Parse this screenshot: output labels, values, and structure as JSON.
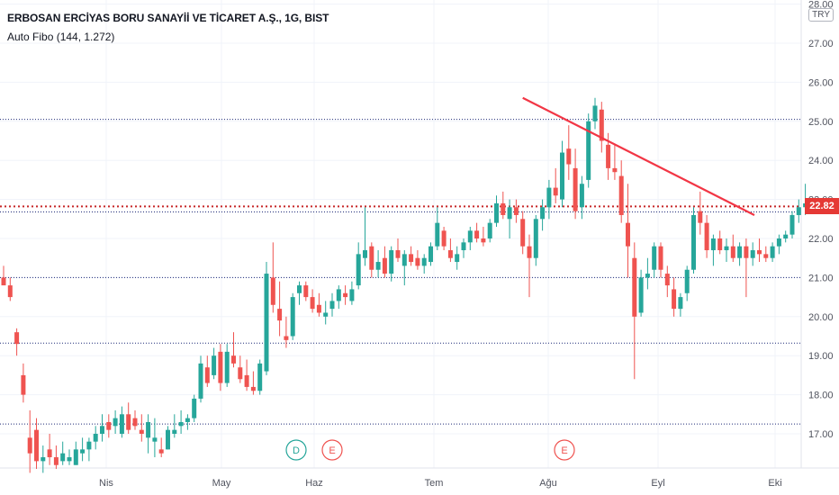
{
  "header": {
    "title": "ERBOSAN ERCİYAS BORU SANAYİİ VE TİCARET A.Ş., 1G, BIST",
    "indicator": "Auto Fibo (144, 1.272)",
    "currency": "TRY"
  },
  "price_tag": "22.82",
  "events": [
    {
      "label": "D",
      "date": "Haz (early)",
      "color": "#26a69a"
    },
    {
      "label": "E",
      "date": "Haz (early)",
      "color": "#ef5350"
    },
    {
      "label": "E",
      "date": "Ağu (early)",
      "color": "#ef5350"
    }
  ],
  "colors": {
    "up": "#26a69a",
    "down": "#ef5350",
    "trendline": "#f23645",
    "fib_line": "#1e2a78",
    "last_price_line": "#c62828",
    "grid": "#f0f3fa",
    "axis_text": "#50535e"
  },
  "chart_data": {
    "type": "candlestick",
    "title": "ERBOSAN ERCİYAS BORU SANAYİİ VE TİCARET A.Ş., 1G, BIST",
    "y_axis": {
      "ticks": [
        "17.00",
        "18.00",
        "19.00",
        "20.00",
        "21.00",
        "22.00",
        "23.00",
        "24.00",
        "25.00",
        "26.00",
        "27.00",
        "28.00"
      ],
      "ylim": [
        16.2,
        28.1
      ],
      "position": "right"
    },
    "x_axis": {
      "ticks": [
        "Nis",
        "May",
        "Haz",
        "Tem",
        "Ağu",
        "Eyl",
        "Eki"
      ]
    },
    "fib_levels": [
      25.05,
      22.68,
      21.0,
      19.32,
      17.25
    ],
    "last_price": 22.82,
    "trendline": {
      "from": [
        79,
        25.6
      ],
      "to": [
        110,
        22.6
      ]
    },
    "candles": [
      [
        21.0,
        21.3,
        20.9,
        20.8
      ],
      [
        20.8,
        21.0,
        20.4,
        20.5
      ],
      [
        19.6,
        19.7,
        19.0,
        19.3
      ],
      [
        18.5,
        18.8,
        17.8,
        18.0
      ],
      [
        16.9,
        17.6,
        16.0,
        16.5
      ],
      [
        17.1,
        17.4,
        16.1,
        16.3
      ],
      [
        16.3,
        16.7,
        16.0,
        16.4
      ],
      [
        16.6,
        17.0,
        16.2,
        16.4
      ],
      [
        16.4,
        16.7,
        16.1,
        16.2
      ],
      [
        16.3,
        16.8,
        16.2,
        16.5
      ],
      [
        16.3,
        16.6,
        16.2,
        16.4
      ],
      [
        16.2,
        16.8,
        16.2,
        16.6
      ],
      [
        16.5,
        16.9,
        16.3,
        16.6
      ],
      [
        16.6,
        16.9,
        16.3,
        16.8
      ],
      [
        16.8,
        17.2,
        16.6,
        17.0
      ],
      [
        17.0,
        17.5,
        16.8,
        17.2
      ],
      [
        17.3,
        17.5,
        16.9,
        17.1
      ],
      [
        17.2,
        17.6,
        17.0,
        17.4
      ],
      [
        17.0,
        17.7,
        16.9,
        17.5
      ],
      [
        17.5,
        17.8,
        17.0,
        17.1
      ],
      [
        17.4,
        17.6,
        17.1,
        17.2
      ],
      [
        17.1,
        17.5,
        16.8,
        17.0
      ],
      [
        16.9,
        17.5,
        16.5,
        17.3
      ],
      [
        16.8,
        17.4,
        16.4,
        16.9
      ],
      [
        16.6,
        16.9,
        16.4,
        16.5
      ],
      [
        16.6,
        17.2,
        16.6,
        17.1
      ],
      [
        17.0,
        17.5,
        16.9,
        17.1
      ],
      [
        17.2,
        17.6,
        17.0,
        17.3
      ],
      [
        17.3,
        17.5,
        17.1,
        17.4
      ],
      [
        17.4,
        18.0,
        17.3,
        17.9
      ],
      [
        17.9,
        19.0,
        17.8,
        18.8
      ],
      [
        18.7,
        19.0,
        18.2,
        18.3
      ],
      [
        18.5,
        19.2,
        18.4,
        19.0
      ],
      [
        19.1,
        19.3,
        18.1,
        18.3
      ],
      [
        18.3,
        19.3,
        18.2,
        19.1
      ],
      [
        19.0,
        19.6,
        18.7,
        18.8
      ],
      [
        18.7,
        19.0,
        18.3,
        18.4
      ],
      [
        18.5,
        18.9,
        18.1,
        18.2
      ],
      [
        18.2,
        18.6,
        18.0,
        18.1
      ],
      [
        18.1,
        18.9,
        18.0,
        18.8
      ],
      [
        18.6,
        21.4,
        18.5,
        21.1
      ],
      [
        21.0,
        21.9,
        20.1,
        20.3
      ],
      [
        20.2,
        20.9,
        19.5,
        19.9
      ],
      [
        19.5,
        20.0,
        19.2,
        19.4
      ],
      [
        19.5,
        20.6,
        19.4,
        20.5
      ],
      [
        20.6,
        20.9,
        20.3,
        20.8
      ],
      [
        20.8,
        20.9,
        20.4,
        20.5
      ],
      [
        20.5,
        20.7,
        20.1,
        20.2
      ],
      [
        20.3,
        20.6,
        20.0,
        20.1
      ],
      [
        20.0,
        20.4,
        19.8,
        20.1
      ],
      [
        20.2,
        20.6,
        20.0,
        20.4
      ],
      [
        20.4,
        20.8,
        20.2,
        20.7
      ],
      [
        20.6,
        20.8,
        20.3,
        20.5
      ],
      [
        20.4,
        20.9,
        20.3,
        20.7
      ],
      [
        20.8,
        21.9,
        20.7,
        21.6
      ],
      [
        21.5,
        22.8,
        21.3,
        21.7
      ],
      [
        21.8,
        21.9,
        21.0,
        21.2
      ],
      [
        21.2,
        21.7,
        21.0,
        21.4
      ],
      [
        21.5,
        21.8,
        21.0,
        21.1
      ],
      [
        21.1,
        21.8,
        20.9,
        21.7
      ],
      [
        21.7,
        22.0,
        21.4,
        21.5
      ],
      [
        21.3,
        21.7,
        20.8,
        21.6
      ],
      [
        21.6,
        21.8,
        21.3,
        21.4
      ],
      [
        21.5,
        21.7,
        21.2,
        21.3
      ],
      [
        21.3,
        21.6,
        21.1,
        21.5
      ],
      [
        21.4,
        21.9,
        21.3,
        21.8
      ],
      [
        21.8,
        22.8,
        21.7,
        22.4
      ],
      [
        22.2,
        22.3,
        21.7,
        21.8
      ],
      [
        21.7,
        22.0,
        21.4,
        21.5
      ],
      [
        21.4,
        21.8,
        21.2,
        21.6
      ],
      [
        21.7,
        22.0,
        21.5,
        21.9
      ],
      [
        21.9,
        22.3,
        21.7,
        22.2
      ],
      [
        22.2,
        22.4,
        21.9,
        22.0
      ],
      [
        22.0,
        22.3,
        21.8,
        21.9
      ],
      [
        22.0,
        22.5,
        21.9,
        22.4
      ],
      [
        22.4,
        23.1,
        22.3,
        22.9
      ],
      [
        22.9,
        23.2,
        22.5,
        22.6
      ],
      [
        22.5,
        23.0,
        22.0,
        22.8
      ],
      [
        22.8,
        23.0,
        22.4,
        22.6
      ],
      [
        22.5,
        22.7,
        21.6,
        21.8
      ],
      [
        21.8,
        22.1,
        20.5,
        21.5
      ],
      [
        21.5,
        22.6,
        21.3,
        22.5
      ],
      [
        22.5,
        23.0,
        22.2,
        22.8
      ],
      [
        22.8,
        23.5,
        22.5,
        23.3
      ],
      [
        23.3,
        23.8,
        22.9,
        23.1
      ],
      [
        23.0,
        24.5,
        22.8,
        24.2
      ],
      [
        24.3,
        24.9,
        23.5,
        23.9
      ],
      [
        23.8,
        24.3,
        22.5,
        22.7
      ],
      [
        22.8,
        23.6,
        22.5,
        23.4
      ],
      [
        23.5,
        25.2,
        23.3,
        25.0
      ],
      [
        25.0,
        25.6,
        24.8,
        25.4
      ],
      [
        25.3,
        25.5,
        24.2,
        24.5
      ],
      [
        24.4,
        24.7,
        23.5,
        23.8
      ],
      [
        23.8,
        24.4,
        23.5,
        23.7
      ],
      [
        23.6,
        24.0,
        22.4,
        22.6
      ],
      [
        22.4,
        23.4,
        21.0,
        21.8
      ],
      [
        21.5,
        21.9,
        18.4,
        20.0
      ],
      [
        20.1,
        21.2,
        20.0,
        21.0
      ],
      [
        21.0,
        21.5,
        20.7,
        21.1
      ],
      [
        21.2,
        21.9,
        21.0,
        21.8
      ],
      [
        21.8,
        21.9,
        21.0,
        21.2
      ],
      [
        21.1,
        21.3,
        20.5,
        20.8
      ],
      [
        20.7,
        21.0,
        20.0,
        20.2
      ],
      [
        20.2,
        20.6,
        20.0,
        20.5
      ],
      [
        20.6,
        21.3,
        20.4,
        21.2
      ],
      [
        21.2,
        22.8,
        21.1,
        22.6
      ],
      [
        22.7,
        23.2,
        22.1,
        22.4
      ],
      [
        22.4,
        22.6,
        21.5,
        21.7
      ],
      [
        21.7,
        22.1,
        21.3,
        22.0
      ],
      [
        22.0,
        22.2,
        21.6,
        21.7
      ],
      [
        21.7,
        22.0,
        21.4,
        21.8
      ],
      [
        21.8,
        22.1,
        21.4,
        21.5
      ],
      [
        21.5,
        21.9,
        21.3,
        21.8
      ],
      [
        21.8,
        22.0,
        20.5,
        21.5
      ],
      [
        21.5,
        21.9,
        21.3,
        21.7
      ],
      [
        21.7,
        22.0,
        21.4,
        21.6
      ],
      [
        21.6,
        21.8,
        21.4,
        21.5
      ],
      [
        21.5,
        21.9,
        21.4,
        21.8
      ],
      [
        21.8,
        22.1,
        21.6,
        22.0
      ],
      [
        22.0,
        22.2,
        21.9,
        22.1
      ],
      [
        22.1,
        22.7,
        22.0,
        22.6
      ],
      [
        22.6,
        23.0,
        22.4,
        22.8
      ],
      [
        22.8,
        23.4,
        22.6,
        22.9
      ],
      [
        22.9,
        23.0,
        22.7,
        22.8
      ]
    ]
  }
}
